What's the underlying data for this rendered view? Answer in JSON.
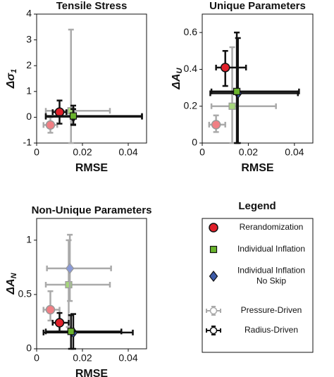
{
  "chart_data": [
    {
      "type": "scatter",
      "title": "Tensile Stress",
      "xlabel": "RMSE",
      "ylabel": "Δσ",
      "ylabel_sub": "1",
      "xlim": [
        0,
        0.048
      ],
      "ylim": [
        -1,
        4
      ],
      "xticks": [
        0,
        0.02,
        0.04
      ],
      "yticks": [
        -1,
        0,
        1,
        2,
        3,
        4
      ],
      "points": [
        {
          "marker": "square",
          "color": "#a6d67c",
          "bar_color": "#aaaaaa",
          "x": 0.015,
          "y": 0.25,
          "xerr": [
            0.011,
            0.017
          ],
          "yerr": [
            1.25,
            3.15
          ]
        },
        {
          "marker": "circle",
          "color": "#f07f84",
          "bar_color": "#aaaaaa",
          "x": 0.006,
          "y": -0.3,
          "xerr": [
            0.003,
            0.003
          ],
          "yerr": [
            0.3,
            0.3
          ]
        },
        {
          "marker": "circle",
          "color": "#e0202a",
          "bar_color": "#111111",
          "x": 0.01,
          "y": 0.2,
          "xerr": [
            0.003,
            0.003
          ],
          "yerr": [
            0.45,
            0.45
          ]
        },
        {
          "marker": "diamond",
          "color": "#3c5aa8",
          "bar_color": "#111111",
          "x": 0.016,
          "y": 0.02,
          "xerr": [
            0.012,
            0.03
          ],
          "yerr": [
            0.3,
            0.3
          ]
        },
        {
          "marker": "square",
          "color": "#6ab42d",
          "bar_color": "#111111",
          "x": 0.016,
          "y": 0.05,
          "xerr": [
            0.012,
            0.03
          ],
          "yerr": [
            0.35,
            0.4
          ]
        }
      ]
    },
    {
      "type": "scatter",
      "title": "Unique Parameters",
      "xlabel": "RMSE",
      "ylabel": "ΔA",
      "ylabel_sub": "U",
      "xlim": [
        0,
        0.048
      ],
      "ylim": [
        0,
        0.7
      ],
      "xticks": [
        0,
        0.02,
        0.04
      ],
      "yticks": [
        0,
        0.2,
        0.4,
        0.6
      ],
      "points": [
        {
          "marker": "circle",
          "color": "#f07f84",
          "bar_color": "#aaaaaa",
          "x": 0.006,
          "y": 0.1,
          "xerr": [
            0.003,
            0.004
          ],
          "yerr": [
            0.04,
            0.05
          ]
        },
        {
          "marker": "square",
          "color": "#a6d67c",
          "bar_color": "#aaaaaa",
          "x": 0.013,
          "y": 0.2,
          "xerr": [
            0.009,
            0.019
          ],
          "yerr": [
            0.2,
            0.32
          ]
        },
        {
          "marker": "circle",
          "color": "#e0202a",
          "bar_color": "#111111",
          "x": 0.01,
          "y": 0.41,
          "xerr": [
            0.004,
            0.009
          ],
          "yerr": [
            0.1,
            0.09
          ]
        },
        {
          "marker": "diamond",
          "color": "#3c5aa8",
          "bar_color": "#111111",
          "x": 0.0155,
          "y": 0.27,
          "xerr": [
            0.012,
            0.026
          ],
          "yerr": [
            0.27,
            0.3
          ]
        },
        {
          "marker": "square",
          "color": "#6ab42d",
          "bar_color": "#111111",
          "x": 0.015,
          "y": 0.28,
          "xerr": [
            0.011,
            0.027
          ],
          "yerr": [
            0.28,
            0.32
          ]
        }
      ]
    },
    {
      "type": "scatter",
      "title": "Non-Unique Parameters",
      "xlabel": "RMSE",
      "ylabel": "ΔA",
      "ylabel_sub": "N",
      "xlim": [
        0,
        0.048
      ],
      "ylim": [
        0,
        1.2
      ],
      "xticks": [
        0,
        0.02,
        0.04
      ],
      "yticks": [
        0,
        0.5,
        1
      ],
      "points": [
        {
          "marker": "circle",
          "color": "#f07f84",
          "bar_color": "#aaaaaa",
          "x": 0.006,
          "y": 0.36,
          "xerr": [
            0.003,
            0.004
          ],
          "yerr": [
            0.1,
            0.17
          ]
        },
        {
          "marker": "square",
          "color": "#a6d67c",
          "bar_color": "#aaaaaa",
          "x": 0.014,
          "y": 0.59,
          "xerr": [
            0.01,
            0.018
          ],
          "yerr": [
            0.39,
            0.41
          ]
        },
        {
          "marker": "diamond",
          "color": "#8a9ad6",
          "bar_color": "#aaaaaa",
          "x": 0.0145,
          "y": 0.74,
          "xerr": [
            0.01,
            0.018
          ],
          "yerr": [
            0.3,
            0.31
          ]
        },
        {
          "marker": "circle",
          "color": "#e0202a",
          "bar_color": "#111111",
          "x": 0.01,
          "y": 0.24,
          "xerr": [
            0.003,
            0.004
          ],
          "yerr": [
            0.08,
            0.09
          ]
        },
        {
          "marker": "diamond",
          "color": "#3c5aa8",
          "bar_color": "#111111",
          "x": 0.016,
          "y": 0.15,
          "xerr": [
            0.013,
            0.026
          ],
          "yerr": [
            0.15,
            0.17
          ]
        },
        {
          "marker": "square",
          "color": "#6ab42d",
          "bar_color": "#111111",
          "x": 0.015,
          "y": 0.16,
          "xerr": [
            0.011,
            0.022
          ],
          "yerr": [
            0.16,
            0.15
          ]
        }
      ]
    }
  ],
  "legend": {
    "title": "Legend",
    "entries": [
      {
        "marker": "circle",
        "color": "#e0202a",
        "lines": [
          "Rerandomization"
        ]
      },
      {
        "marker": "square",
        "color": "#6ab42d",
        "lines": [
          "Individual Inflation"
        ]
      },
      {
        "marker": "diamond",
        "color": "#3c5aa8",
        "lines": [
          "Individual Inflation",
          "No Skip"
        ]
      },
      {
        "marker": "errorbar",
        "color": "#aaaaaa",
        "lines": [
          "Pressure-Driven"
        ]
      },
      {
        "marker": "errorbar",
        "color": "#111111",
        "lines": [
          "Radius-Driven"
        ]
      }
    ]
  }
}
